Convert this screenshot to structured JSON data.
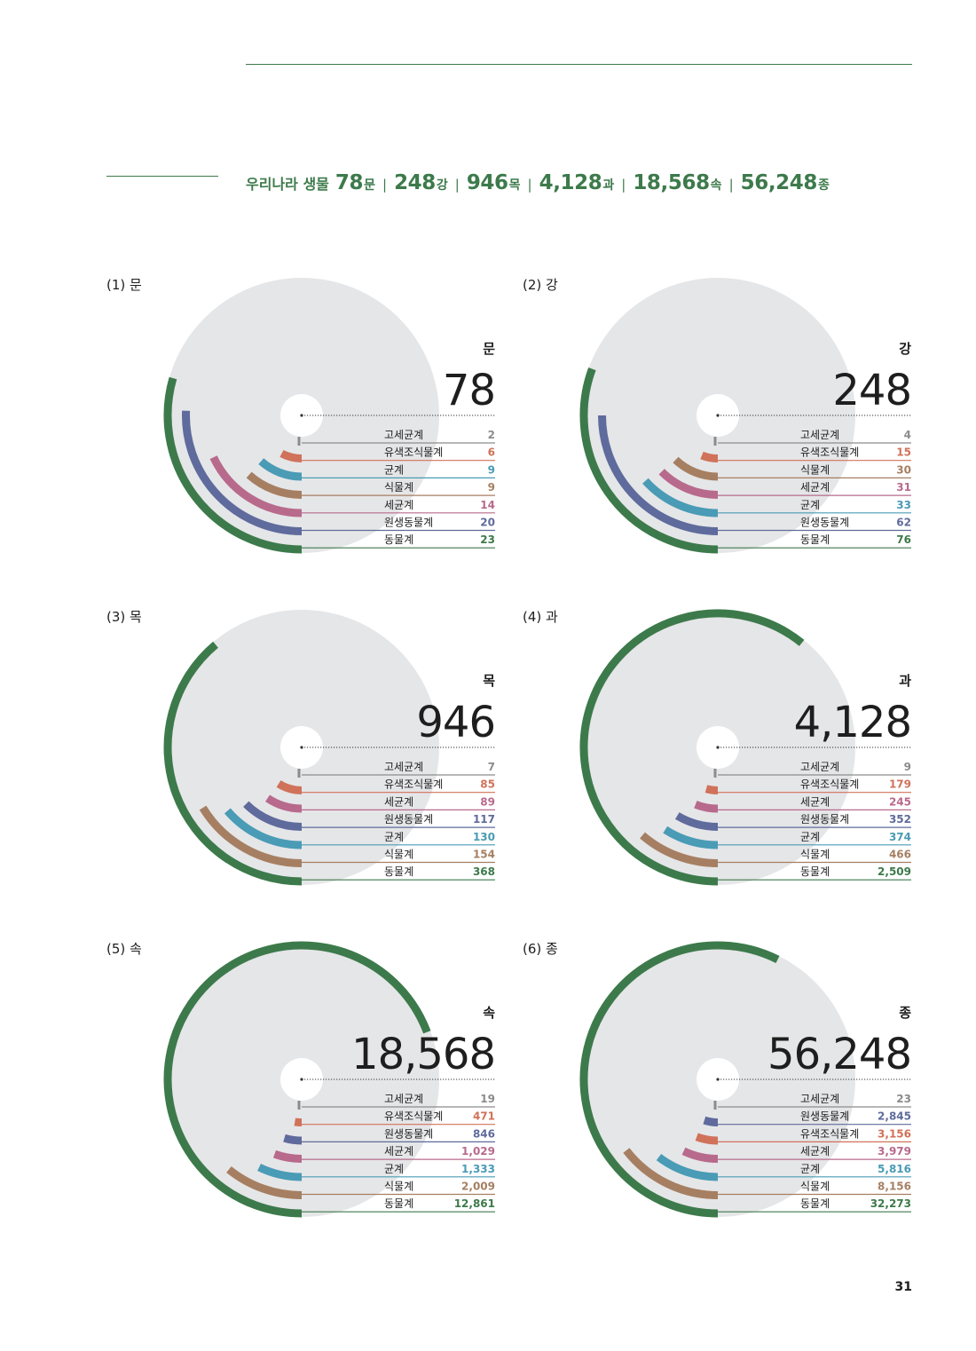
{
  "summary": {
    "lead": "우리나라 생물",
    "items": [
      {
        "value": "78",
        "unit": "문"
      },
      {
        "value": "248",
        "unit": "강"
      },
      {
        "value": "946",
        "unit": "목"
      },
      {
        "value": "4,128",
        "unit": "과"
      },
      {
        "value": "18,568",
        "unit": "속"
      },
      {
        "value": "56,248",
        "unit": "종"
      }
    ],
    "separator": "|"
  },
  "page_number": "31",
  "colors": {
    "accent": "#3d7a4b",
    "background_disc": "#e5e6e8",
    "center_hole": "#ffffff",
    "gray": "#8c8c8c"
  },
  "kingdom_colors": {
    "고세균계": "#8c8c8c",
    "유색조식물계": "#d0725a",
    "균계": "#4a9bb5",
    "식물계": "#a67f62",
    "세균계": "#b86a8c",
    "원생동물계": "#5f6b9c",
    "동물계": "#3d7a4b"
  },
  "chart_data": [
    {
      "type": "radial-bar",
      "panel_label": "(1) 문",
      "rank": "문",
      "total": 78,
      "total_label": "78",
      "categories": [
        "고세균계",
        "유색조식물계",
        "균계",
        "식물계",
        "세균계",
        "원생동물계",
        "동물계"
      ],
      "values": [
        2,
        6,
        9,
        9,
        14,
        20,
        23
      ],
      "value_labels": [
        "2",
        "6",
        "9",
        "9",
        "14",
        "20",
        "23"
      ]
    },
    {
      "type": "radial-bar",
      "panel_label": "(2) 강",
      "rank": "강",
      "total": 248,
      "total_label": "248",
      "categories": [
        "고세균계",
        "유색조식물계",
        "식물계",
        "세균계",
        "균계",
        "원생동물계",
        "동물계"
      ],
      "values": [
        4,
        15,
        30,
        31,
        33,
        62,
        76
      ],
      "value_labels": [
        "4",
        "15",
        "30",
        "31",
        "33",
        "62",
        "76"
      ]
    },
    {
      "type": "radial-bar",
      "panel_label": "(3) 목",
      "rank": "목",
      "total": 946,
      "total_label": "946",
      "categories": [
        "고세균계",
        "유색조식물계",
        "세균계",
        "원생동물계",
        "균계",
        "식물계",
        "동물계"
      ],
      "values": [
        7,
        85,
        89,
        117,
        130,
        154,
        368
      ],
      "value_labels": [
        "7",
        "85",
        "89",
        "117",
        "130",
        "154",
        "368"
      ]
    },
    {
      "type": "radial-bar",
      "panel_label": "(4) 과",
      "rank": "과",
      "total": 4128,
      "total_label": "4,128",
      "categories": [
        "고세균계",
        "유색조식물계",
        "세균계",
        "원생동물계",
        "균계",
        "식물계",
        "동물계"
      ],
      "values": [
        9,
        179,
        245,
        352,
        374,
        466,
        2509
      ],
      "value_labels": [
        "9",
        "179",
        "245",
        "352",
        "374",
        "466",
        "2,509"
      ]
    },
    {
      "type": "radial-bar",
      "panel_label": "(5) 속",
      "rank": "속",
      "total": 18568,
      "total_label": "18,568",
      "categories": [
        "고세균계",
        "유색조식물계",
        "원생동물계",
        "세균계",
        "균계",
        "식물계",
        "동물계"
      ],
      "values": [
        19,
        471,
        846,
        1029,
        1333,
        2009,
        12861
      ],
      "value_labels": [
        "19",
        "471",
        "846",
        "1,029",
        "1,333",
        "2,009",
        "12,861"
      ]
    },
    {
      "type": "radial-bar",
      "panel_label": "(6) 종",
      "rank": "종",
      "total": 56248,
      "total_label": "56,248",
      "categories": [
        "고세균계",
        "원생동물계",
        "유색조식물계",
        "세균계",
        "균계",
        "식물계",
        "동물계"
      ],
      "values": [
        23,
        2845,
        3156,
        3979,
        5816,
        8156,
        32273
      ],
      "value_labels": [
        "23",
        "2,845",
        "3,156",
        "3,979",
        "5,816",
        "8,156",
        "32,273"
      ]
    }
  ]
}
